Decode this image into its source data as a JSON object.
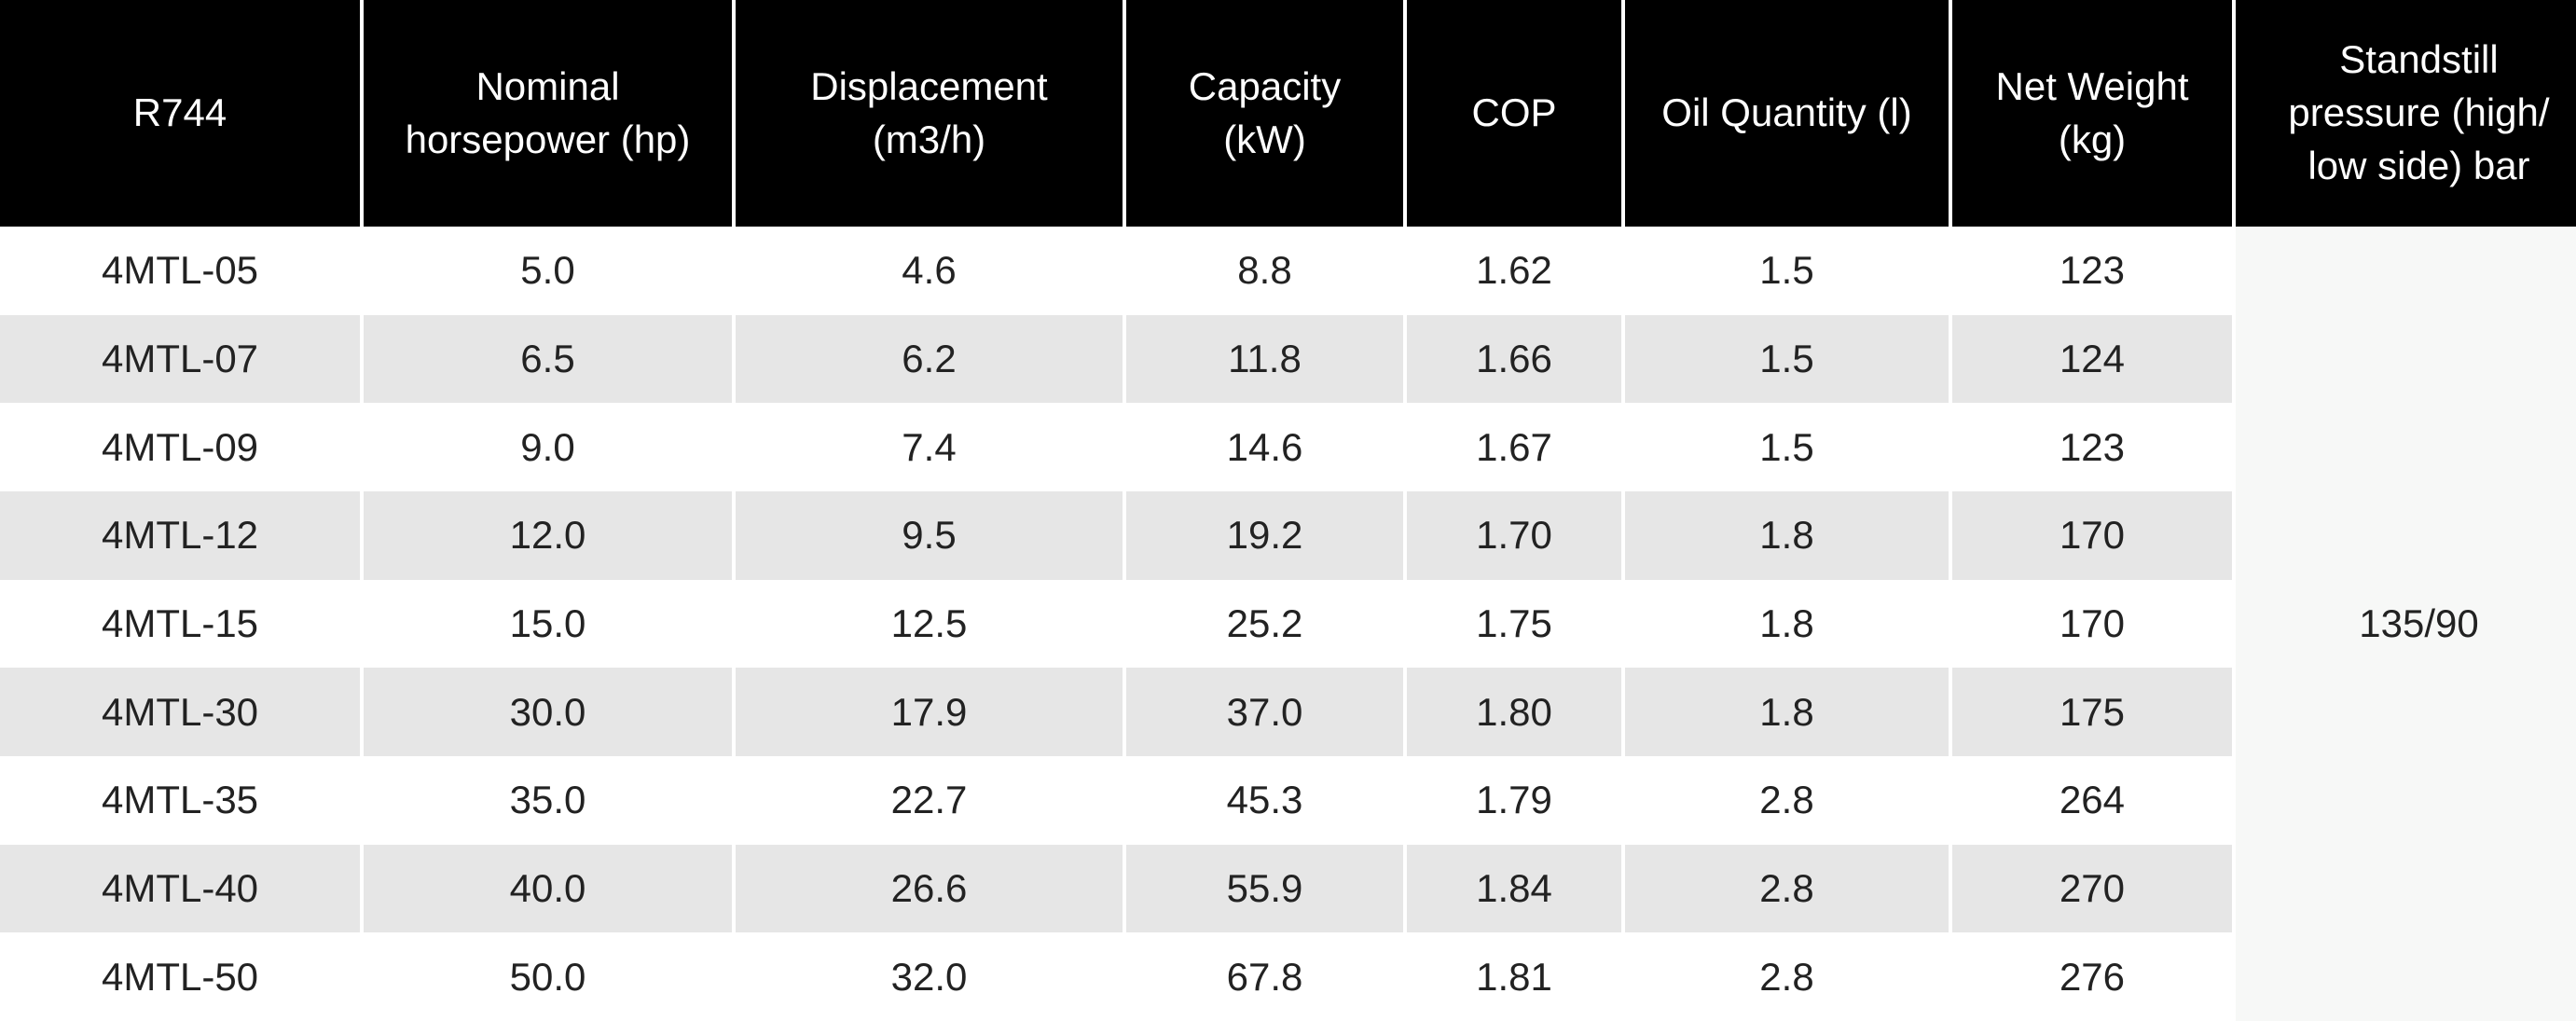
{
  "table": {
    "headers": [
      "R744",
      "Nominal\nhorsepower (hp)",
      "Displacement\n(m3/h)",
      "Capacity\n(kW)",
      "COP",
      "Oil Quantity (l)",
      "Net Weight\n(kg)",
      "Standstill\npressure (high/\nlow side) bar"
    ],
    "rows": [
      [
        "4MTL-05",
        "5.0",
        "4.6",
        "8.8",
        "1.62",
        "1.5",
        "123"
      ],
      [
        "4MTL-07",
        "6.5",
        "6.2",
        "11.8",
        "1.66",
        "1.5",
        "124"
      ],
      [
        "4MTL-09",
        "9.0",
        "7.4",
        "14.6",
        "1.67",
        "1.5",
        "123"
      ],
      [
        "4MTL-12",
        "12.0",
        "9.5",
        "19.2",
        "1.70",
        "1.8",
        "170"
      ],
      [
        "4MTL-15",
        "15.0",
        "12.5",
        "25.2",
        "1.75",
        "1.8",
        "170"
      ],
      [
        "4MTL-30",
        "30.0",
        "17.9",
        "37.0",
        "1.80",
        "1.8",
        "175"
      ],
      [
        "4MTL-35",
        "35.0",
        "22.7",
        "45.3",
        "1.79",
        "2.8",
        "264"
      ],
      [
        "4MTL-40",
        "40.0",
        "26.6",
        "55.9",
        "1.84",
        "2.8",
        "270"
      ],
      [
        "4MTL-50",
        "50.0",
        "32.0",
        "67.8",
        "1.81",
        "2.8",
        "276"
      ]
    ],
    "standstill_pressure": "135/90"
  }
}
